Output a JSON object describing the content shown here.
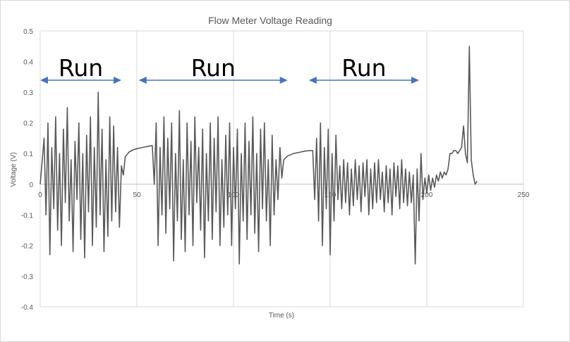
{
  "chart_data": {
    "type": "line",
    "title": "Flow Meter Voltage Reading",
    "xlabel": "Time (s)",
    "ylabel": "Voltage (V)",
    "xlim": [
      0,
      250
    ],
    "ylim": [
      -0.4,
      0.5
    ],
    "x_ticks": [
      0,
      50,
      100,
      150,
      200,
      250
    ],
    "x_tick_labels": [
      "0",
      "50",
      "100",
      "150",
      "200",
      "250"
    ],
    "y_ticks": [
      -0.4,
      -0.3,
      -0.2,
      -0.1,
      0,
      0.1,
      0.2,
      0.3,
      0.4,
      0.5
    ],
    "y_tick_labels": [
      "-0.4",
      "-0.3",
      "-0.2",
      "-0.1",
      "0",
      "0.1",
      "0.2",
      "0.3",
      "0.4",
      "0.5"
    ],
    "grid": {
      "vertical": true,
      "horizontal": false
    },
    "legend": "none",
    "series_color": "#595959",
    "annotation_color": "#4472c4",
    "annotations": [
      {
        "text": "Run",
        "x_start": 0,
        "x_end": 42
      },
      {
        "text": "Run",
        "x_start": 51,
        "x_end": 128
      },
      {
        "text": "Run",
        "x_start": 139,
        "x_end": 196
      }
    ],
    "series": [
      {
        "values": [
          [
            0,
            0.0
          ],
          [
            2,
            0.15
          ],
          [
            3,
            -0.1
          ],
          [
            4,
            0.2
          ],
          [
            5,
            -0.23
          ],
          [
            6,
            0.12
          ],
          [
            7,
            -0.08
          ],
          [
            8,
            0.22
          ],
          [
            9,
            -0.15
          ],
          [
            10,
            0.1
          ],
          [
            11,
            -0.2
          ],
          [
            12,
            0.18
          ],
          [
            13,
            -0.06
          ],
          [
            14,
            0.25
          ],
          [
            15,
            -0.12
          ],
          [
            16,
            0.08
          ],
          [
            17,
            -0.22
          ],
          [
            18,
            0.14
          ],
          [
            19,
            -0.05
          ],
          [
            20,
            0.2
          ],
          [
            21,
            -0.18
          ],
          [
            22,
            0.1
          ],
          [
            23,
            -0.24
          ],
          [
            24,
            0.16
          ],
          [
            25,
            -0.09
          ],
          [
            26,
            0.22
          ],
          [
            27,
            -0.2
          ],
          [
            28,
            0.12
          ],
          [
            29,
            -0.14
          ],
          [
            30,
            0.3
          ],
          [
            31,
            -0.1
          ],
          [
            32,
            0.18
          ],
          [
            33,
            -0.22
          ],
          [
            34,
            0.08
          ],
          [
            35,
            -0.17
          ],
          [
            36,
            0.22
          ],
          [
            37,
            -0.12
          ],
          [
            38,
            0.19
          ],
          [
            39,
            -0.09
          ],
          [
            40,
            0.12
          ],
          [
            41,
            -0.14
          ],
          [
            42,
            0.06
          ],
          [
            43,
            0.03
          ],
          [
            44,
            0.09
          ],
          [
            46,
            0.105
          ],
          [
            48,
            0.112
          ],
          [
            50,
            0.116
          ],
          [
            53,
            0.12
          ],
          [
            56,
            0.124
          ],
          [
            58,
            0.126
          ],
          [
            59,
            0.0
          ],
          [
            60,
            0.2
          ],
          [
            61,
            -0.2
          ],
          [
            62,
            0.12
          ],
          [
            63,
            -0.1
          ],
          [
            64,
            0.22
          ],
          [
            65,
            -0.16
          ],
          [
            66,
            0.15
          ],
          [
            67,
            -0.08
          ],
          [
            68,
            0.2
          ],
          [
            69,
            -0.25
          ],
          [
            70,
            0.1
          ],
          [
            71,
            -0.12
          ],
          [
            72,
            0.24
          ],
          [
            73,
            -0.18
          ],
          [
            74,
            0.08
          ],
          [
            75,
            -0.22
          ],
          [
            76,
            0.2
          ],
          [
            77,
            -0.1
          ],
          [
            78,
            0.14
          ],
          [
            79,
            -0.2
          ],
          [
            80,
            0.22
          ],
          [
            81,
            -0.06
          ],
          [
            82,
            0.12
          ],
          [
            83,
            -0.15
          ],
          [
            84,
            0.18
          ],
          [
            85,
            -0.24
          ],
          [
            86,
            0.1
          ],
          [
            87,
            -0.12
          ],
          [
            88,
            0.2
          ],
          [
            89,
            -0.18
          ],
          [
            90,
            0.15
          ],
          [
            91,
            -0.09
          ],
          [
            92,
            0.22
          ],
          [
            93,
            -0.2
          ],
          [
            94,
            0.08
          ],
          [
            95,
            -0.14
          ],
          [
            96,
            0.16
          ],
          [
            97,
            -0.1
          ],
          [
            98,
            0.2
          ],
          [
            99,
            -0.2
          ],
          [
            100,
            0.12
          ],
          [
            101,
            -0.08
          ],
          [
            102,
            0.18
          ],
          [
            103,
            -0.26
          ],
          [
            104,
            0.1
          ],
          [
            105,
            -0.12
          ],
          [
            106,
            0.2
          ],
          [
            107,
            -0.18
          ],
          [
            108,
            0.14
          ],
          [
            109,
            -0.1
          ],
          [
            110,
            0.22
          ],
          [
            111,
            -0.16
          ],
          [
            112,
            0.1
          ],
          [
            113,
            -0.22
          ],
          [
            114,
            0.18
          ],
          [
            115,
            -0.08
          ],
          [
            116,
            0.2
          ],
          [
            117,
            -0.12
          ],
          [
            118,
            0.08
          ],
          [
            119,
            -0.2
          ],
          [
            120,
            0.16
          ],
          [
            121,
            -0.1
          ],
          [
            122,
            0.08
          ],
          [
            123,
            -0.05
          ],
          [
            124,
            0.12
          ],
          [
            125,
            0.02
          ],
          [
            126,
            0.08
          ],
          [
            128,
            0.092
          ],
          [
            131,
            0.1
          ],
          [
            134,
            0.104
          ],
          [
            137,
            0.108
          ],
          [
            140,
            0.11
          ],
          [
            141,
            0.11
          ],
          [
            142,
            -0.05
          ],
          [
            143,
            0.15
          ],
          [
            144,
            -0.12
          ],
          [
            145,
            0.2
          ],
          [
            146,
            -0.2
          ],
          [
            147,
            0.12
          ],
          [
            148,
            -0.08
          ],
          [
            149,
            0.18
          ],
          [
            150,
            -0.23
          ],
          [
            151,
            0.1
          ],
          [
            152,
            -0.12
          ],
          [
            153,
            0.16
          ],
          [
            154,
            -0.05
          ],
          [
            155,
            0.06
          ],
          [
            156,
            -0.08
          ],
          [
            157,
            0.08
          ],
          [
            158,
            -0.06
          ],
          [
            159,
            0.07
          ],
          [
            160,
            -0.1
          ],
          [
            161,
            0.05
          ],
          [
            162,
            -0.07
          ],
          [
            163,
            0.08
          ],
          [
            164,
            -0.05
          ],
          [
            165,
            0.06
          ],
          [
            166,
            -0.09
          ],
          [
            167,
            0.07
          ],
          [
            168,
            -0.04
          ],
          [
            169,
            0.08
          ],
          [
            170,
            -0.1
          ],
          [
            171,
            0.05
          ],
          [
            172,
            -0.08
          ],
          [
            173,
            0.07
          ],
          [
            174,
            -0.06
          ],
          [
            175,
            0.08
          ],
          [
            176,
            -0.05
          ],
          [
            177,
            0.04
          ],
          [
            178,
            -0.09
          ],
          [
            179,
            0.06
          ],
          [
            180,
            -0.06
          ],
          [
            181,
            0.05
          ],
          [
            182,
            -0.1
          ],
          [
            183,
            0.07
          ],
          [
            184,
            -0.04
          ],
          [
            185,
            0.06
          ],
          [
            186,
            -0.08
          ],
          [
            187,
            0.08
          ],
          [
            188,
            -0.06
          ],
          [
            189,
            0.05
          ],
          [
            190,
            -0.07
          ],
          [
            191,
            0.04
          ],
          [
            192,
            -0.06
          ],
          [
            193,
            0.03
          ],
          [
            194,
            -0.26
          ],
          [
            195,
            0.05
          ],
          [
            196,
            -0.12
          ],
          [
            197,
            0.1
          ],
          [
            198,
            -0.05
          ],
          [
            199,
            0.02
          ],
          [
            200,
            -0.03
          ],
          [
            201,
            0.03
          ],
          [
            202,
            -0.02
          ],
          [
            203,
            0.02
          ],
          [
            204,
            -0.01
          ],
          [
            205,
            0.03
          ],
          [
            206,
            0.01
          ],
          [
            207,
            0.04
          ],
          [
            208,
            0.02
          ],
          [
            209,
            0.04
          ],
          [
            210,
            0.03
          ],
          [
            211,
            0.05
          ],
          [
            212,
            0.1
          ],
          [
            213,
            0.1
          ],
          [
            214,
            0.11
          ],
          [
            215,
            0.11
          ],
          [
            216,
            0.1
          ],
          [
            217,
            0.11
          ],
          [
            218,
            0.12
          ],
          [
            219,
            0.19
          ],
          [
            220,
            0.1
          ],
          [
            221,
            0.07
          ],
          [
            222,
            0.45
          ],
          [
            223,
            0.08
          ],
          [
            224,
            0.03
          ],
          [
            225,
            0.0
          ],
          [
            226,
            0.01
          ]
        ]
      }
    ]
  }
}
